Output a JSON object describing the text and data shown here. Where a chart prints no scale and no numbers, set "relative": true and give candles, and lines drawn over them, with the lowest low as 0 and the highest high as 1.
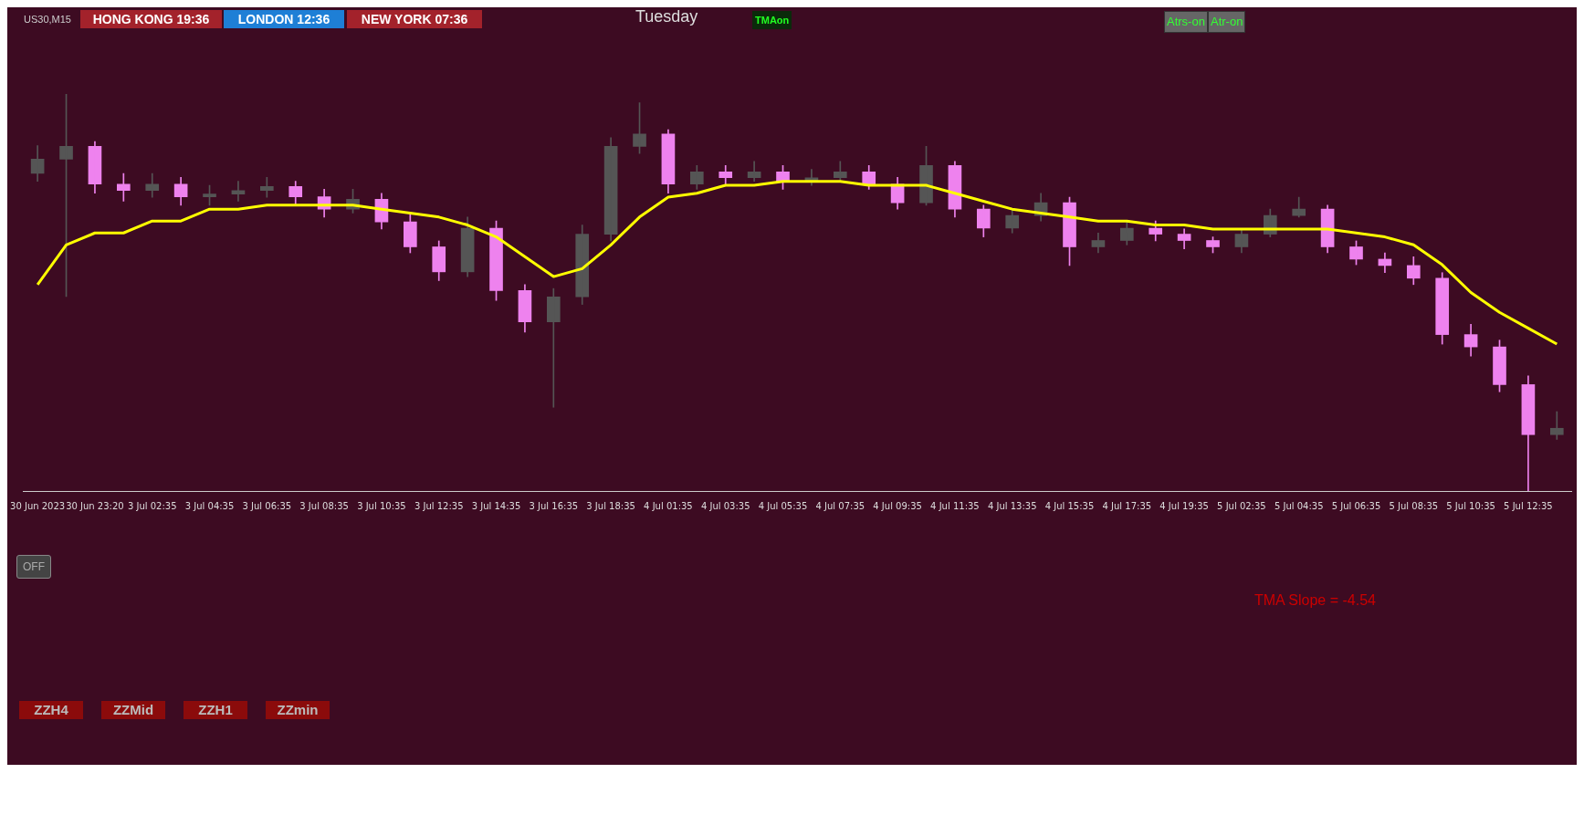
{
  "chart_data": {
    "type": "candlestick",
    "relative": true,
    "categories": [
      "30 Jun 2023",
      null,
      "30 Jun 23:20",
      null,
      "3 Jul 02:35",
      null,
      "3 Jul 04:35",
      null,
      "3 Jul 06:35",
      null,
      "3 Jul 08:35",
      null,
      "3 Jul 10:35",
      null,
      "3 Jul 12:35",
      null,
      "3 Jul 14:35",
      null,
      "3 Jul 16:35",
      null,
      "3 Jul 18:35",
      null,
      "4 Jul 01:35",
      null,
      "4 Jul 03:35",
      null,
      "4 Jul 05:35",
      null,
      "4 Jul 07:35",
      null,
      "4 Jul 09:35",
      null,
      "4 Jul 11:35",
      null,
      "4 Jul 13:35",
      null,
      "4 Jul 15:35",
      null,
      "4 Jul 17:35",
      null,
      "4 Jul 19:35",
      null,
      "5 Jul 02:35",
      null,
      "5 Jul 04:35",
      null,
      "5 Jul 06:35",
      null,
      "5 Jul 08:35",
      null,
      "5 Jul 10:35",
      null,
      "5 Jul 12:35",
      null
    ],
    "ohlc": [
      [
        0.8,
        0.87,
        0.78,
        0.836
      ],
      [
        0.836,
        1.0,
        0.49,
        0.868
      ],
      [
        0.868,
        0.88,
        0.75,
        0.773
      ],
      [
        0.773,
        0.8,
        0.73,
        0.757
      ],
      [
        0.757,
        0.8,
        0.74,
        0.773
      ],
      [
        0.773,
        0.79,
        0.72,
        0.741
      ],
      [
        0.741,
        0.77,
        0.72,
        0.748
      ],
      [
        0.748,
        0.78,
        0.73,
        0.757
      ],
      [
        0.757,
        0.79,
        0.74,
        0.767
      ],
      [
        0.767,
        0.78,
        0.72,
        0.741
      ],
      [
        0.741,
        0.76,
        0.69,
        0.71
      ],
      [
        0.71,
        0.76,
        0.7,
        0.735
      ],
      [
        0.735,
        0.75,
        0.66,
        0.678
      ],
      [
        0.678,
        0.7,
        0.6,
        0.615
      ],
      [
        0.615,
        0.63,
        0.53,
        0.552
      ],
      [
        0.552,
        0.69,
        0.54,
        0.662
      ],
      [
        0.662,
        0.68,
        0.48,
        0.505
      ],
      [
        0.505,
        0.52,
        0.4,
        0.426
      ],
      [
        0.426,
        0.51,
        0.211,
        0.489
      ],
      [
        0.489,
        0.67,
        0.47,
        0.647
      ],
      [
        0.647,
        0.89,
        0.63,
        0.868
      ],
      [
        0.868,
        0.978,
        0.85,
        0.899
      ],
      [
        0.899,
        0.91,
        0.75,
        0.773
      ],
      [
        0.773,
        0.82,
        0.76,
        0.804
      ],
      [
        0.804,
        0.82,
        0.77,
        0.789
      ],
      [
        0.789,
        0.83,
        0.78,
        0.804
      ],
      [
        0.804,
        0.82,
        0.76,
        0.779
      ],
      [
        0.779,
        0.81,
        0.77,
        0.789
      ],
      [
        0.789,
        0.83,
        0.78,
        0.804
      ],
      [
        0.804,
        0.82,
        0.76,
        0.773
      ],
      [
        0.773,
        0.79,
        0.71,
        0.726
      ],
      [
        0.726,
        0.868,
        0.72,
        0.82
      ],
      [
        0.82,
        0.83,
        0.69,
        0.71
      ],
      [
        0.71,
        0.72,
        0.64,
        0.662
      ],
      [
        0.662,
        0.71,
        0.65,
        0.694
      ],
      [
        0.694,
        0.75,
        0.68,
        0.726
      ],
      [
        0.726,
        0.74,
        0.568,
        0.615
      ],
      [
        0.615,
        0.65,
        0.6,
        0.631
      ],
      [
        0.631,
        0.68,
        0.62,
        0.662
      ],
      [
        0.662,
        0.68,
        0.63,
        0.647
      ],
      [
        0.647,
        0.66,
        0.61,
        0.631
      ],
      [
        0.631,
        0.64,
        0.6,
        0.615
      ],
      [
        0.615,
        0.66,
        0.6,
        0.647
      ],
      [
        0.647,
        0.71,
        0.64,
        0.694
      ],
      [
        0.694,
        0.74,
        0.69,
        0.71
      ],
      [
        0.71,
        0.72,
        0.6,
        0.615
      ],
      [
        0.615,
        0.63,
        0.57,
        0.584
      ],
      [
        0.584,
        0.6,
        0.55,
        0.568
      ],
      [
        0.568,
        0.59,
        0.52,
        0.536
      ],
      [
        0.536,
        0.55,
        0.37,
        0.394
      ],
      [
        0.394,
        0.42,
        0.34,
        0.363
      ],
      [
        0.363,
        0.38,
        0.25,
        0.268
      ],
      [
        0.268,
        0.29,
        0.0,
        0.142
      ],
      [
        0.142,
        0.2,
        0.13,
        0.158
      ]
    ],
    "colors": [
      "#555555",
      "#555555",
      "#ee82ee",
      "#ee82ee",
      "#555555",
      "#ee82ee",
      "#555555",
      "#555555",
      "#555555",
      "#ee82ee",
      "#ee82ee",
      "#555555",
      "#ee82ee",
      "#ee82ee",
      "#ee82ee",
      "#555555",
      "#ee82ee",
      "#ee82ee",
      "#555555",
      "#555555",
      "#555555",
      "#555555",
      "#ee82ee",
      "#555555",
      "#ee82ee",
      "#555555",
      "#ee82ee",
      "#555555",
      "#555555",
      "#ee82ee",
      "#ee82ee",
      "#555555",
      "#ee82ee",
      "#ee82ee",
      "#555555",
      "#555555",
      "#ee82ee",
      "#555555",
      "#555555",
      "#ee82ee",
      "#ee82ee",
      "#ee82ee",
      "#555555",
      "#555555",
      "#555555",
      "#ee82ee",
      "#ee82ee",
      "#ee82ee",
      "#ee82ee",
      "#ee82ee",
      "#ee82ee",
      "#ee82ee",
      "#ee82ee",
      "#555555"
    ],
    "series": [
      {
        "type": "line",
        "color": "#ffff00",
        "values": [
          0.52,
          0.62,
          0.65,
          0.65,
          0.68,
          0.68,
          0.71,
          0.71,
          0.72,
          0.72,
          0.72,
          0.72,
          0.71,
          0.7,
          0.69,
          0.67,
          0.64,
          0.59,
          0.54,
          0.56,
          0.62,
          0.69,
          0.74,
          0.75,
          0.77,
          0.77,
          0.78,
          0.78,
          0.78,
          0.77,
          0.77,
          0.77,
          0.75,
          0.73,
          0.71,
          0.7,
          0.69,
          0.68,
          0.68,
          0.67,
          0.67,
          0.66,
          0.66,
          0.66,
          0.66,
          0.66,
          0.65,
          0.64,
          0.62,
          0.57,
          0.5,
          0.45,
          0.41,
          0.37
        ]
      }
    ],
    "legend": false,
    "grid": false,
    "annotations": [
      "US30,M15",
      "HONG KONG 19:36",
      "LONDON 12:36",
      "NEW YORK 07:36",
      "Tuesday",
      "TMAon",
      "Atrs-on",
      "Atr-on",
      "OFF",
      "TMA Slope = -4.54",
      "ZZH4",
      "ZZMid",
      "ZZH1",
      "ZZmin"
    ]
  }
}
